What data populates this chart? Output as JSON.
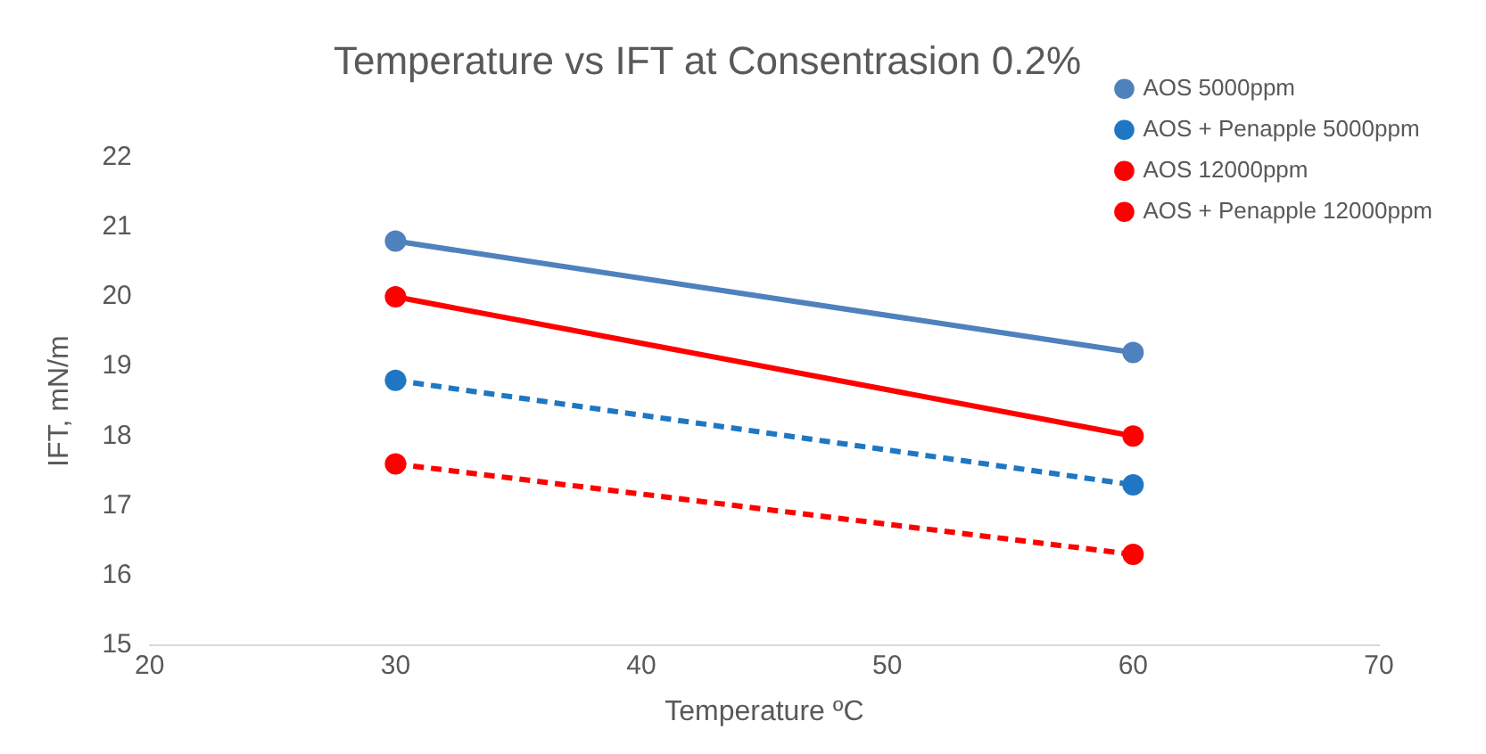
{
  "chart_data": {
    "type": "line",
    "title": "Temperature vs IFT at Consentrasion 0.2%",
    "xlabel": "Temperature ºC",
    "ylabel": "IFT, mN/m",
    "x": [
      30,
      60
    ],
    "series": [
      {
        "name": "AOS 5000ppm",
        "color": "#4f81bd",
        "values": [
          20.8,
          19.2
        ],
        "line_style": "solid"
      },
      {
        "name": "AOS + Penapple 5000ppm",
        "color": "#1f77c4",
        "values": [
          18.8,
          17.3
        ],
        "line_style": "dashed"
      },
      {
        "name": "AOS 12000ppm",
        "color": "#ff0000",
        "values": [
          20.0,
          18.0
        ],
        "line_style": "solid"
      },
      {
        "name": "AOS + Penapple 12000ppm",
        "color": "#ff0000",
        "values": [
          17.6,
          16.3
        ],
        "line_style": "dashed"
      }
    ],
    "xlim": [
      20,
      70
    ],
    "xticks": [
      20,
      30,
      40,
      50,
      60,
      70
    ],
    "ylim": [
      15,
      22
    ],
    "yticks": [
      15,
      16,
      17,
      18,
      19,
      20,
      21,
      22
    ],
    "grid": false,
    "legend": "top right",
    "marker": "circle"
  }
}
